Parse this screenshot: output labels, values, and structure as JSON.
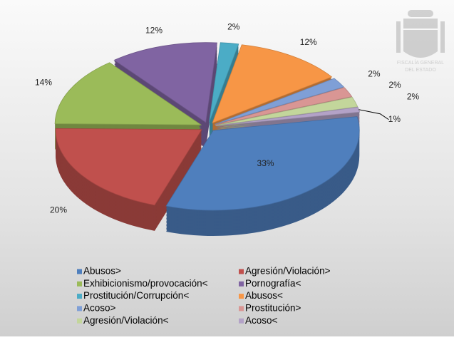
{
  "chart_data": {
    "type": "pie3d",
    "categories": [
      "Abusos>",
      "Agresión/Violación>",
      "Exhibicionismo/provocación<",
      "Pornografía<",
      "Prostitución/Corrupción<",
      "Abusos<",
      "Acoso>",
      "Prostitución>",
      "Agresión/Violación<",
      "Acoso<"
    ],
    "values": [
      33,
      20,
      14,
      12,
      2,
      12,
      2,
      2,
      2,
      1
    ],
    "value_labels": [
      "33%",
      "20%",
      "14%",
      "12%",
      "2%",
      "12%",
      "2%",
      "2%",
      "2%",
      "1%"
    ],
    "colors": [
      "#4f7fbd",
      "#c0504d",
      "#9bbb59",
      "#8064a2",
      "#4bacc6",
      "#f79646",
      "#7f9fd6",
      "#d99694",
      "#c3d69b",
      "#b3a2c7"
    ],
    "legend": "bottom"
  },
  "logo": {
    "line1": "FISCALÍA GENERAL",
    "line2": "DEL ESTADO"
  }
}
